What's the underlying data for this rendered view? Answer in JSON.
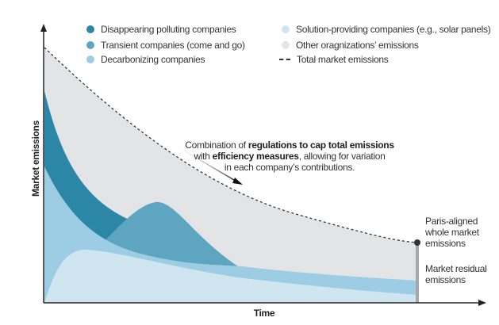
{
  "legend": [
    {
      "label": "Disappearing polluting companies",
      "color": "#2b87a5"
    },
    {
      "label": "Transient companies (come and go)",
      "color": "#5ea5c2"
    },
    {
      "label": "Decarbonizing companies",
      "color": "#9dcde4"
    },
    {
      "label": "Solution-providing companies (e.g., solar panels)",
      "color": "#cfe6f1"
    },
    {
      "label": "Other oragnizations’ emissions",
      "color": "#e3e4e5"
    },
    {
      "label": "Total market emissions",
      "style": "dashed"
    }
  ],
  "axes": {
    "y_label": "Market emissions",
    "x_label": "Time"
  },
  "annotation": {
    "pre": "Combination of ",
    "bold1": "regulations to cap total emissions",
    "mid": "with ",
    "bold2": "efficiency measures",
    "post": ", allowing for variation",
    "line3": "in each company’s contributions."
  },
  "end_labels": {
    "paris": [
      "Paris-aligned",
      "whole market",
      "emissions"
    ],
    "residual": [
      "Market residual",
      "emissions"
    ]
  }
}
